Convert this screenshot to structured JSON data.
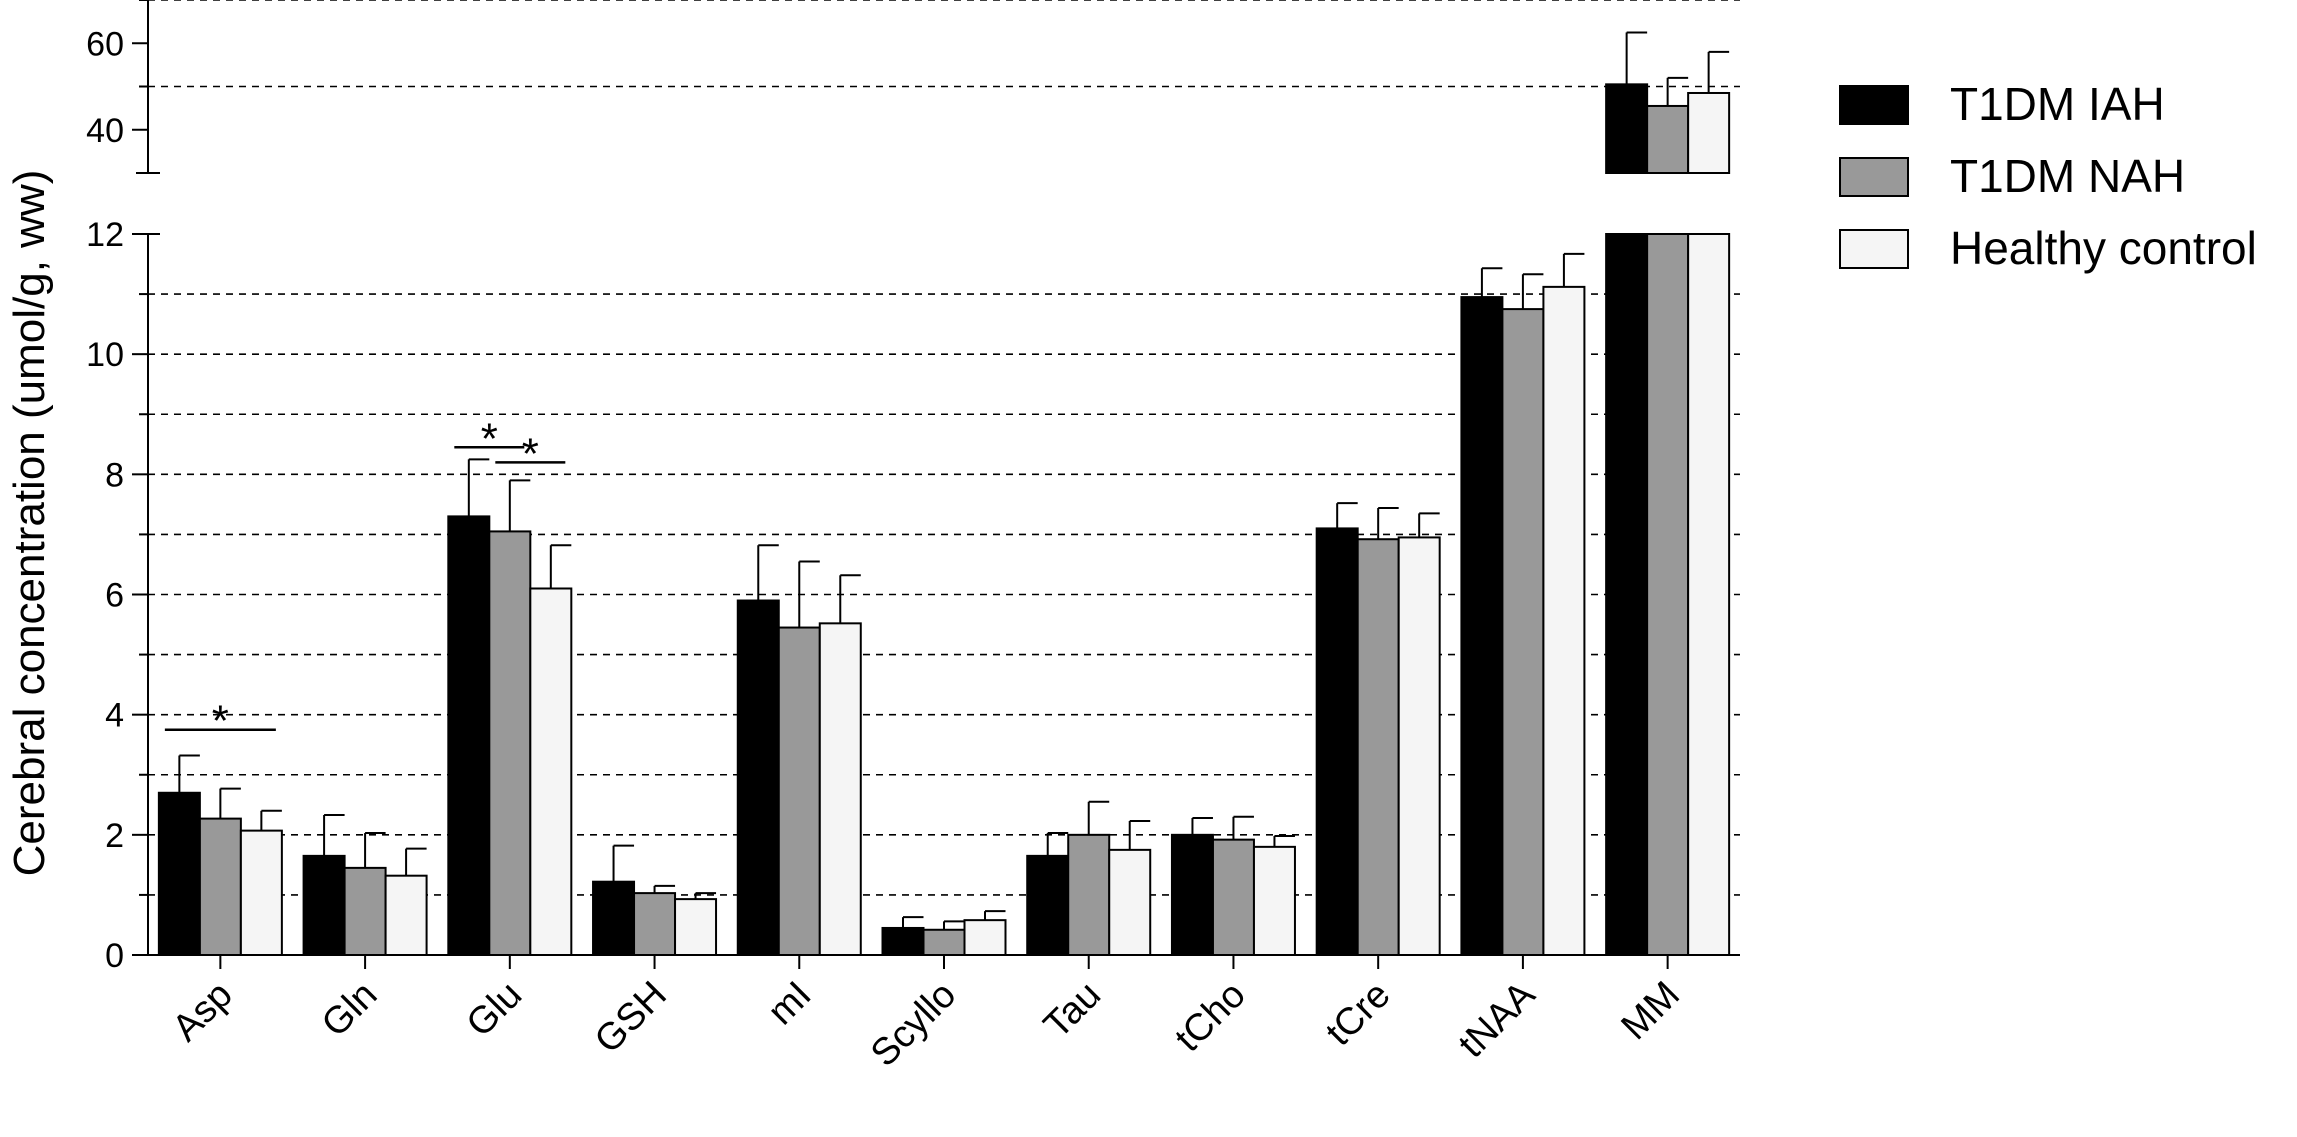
{
  "chart_data": {
    "type": "bar",
    "ylabel": "Cerebral concentration (umol/g, ww)",
    "categories": [
      "Asp",
      "Gln",
      "Glu",
      "GSH",
      "mI",
      "Scyllo",
      "Tau",
      "tCho",
      "tCre",
      "tNAA",
      "MM"
    ],
    "series": [
      {
        "name": "T1DM IAH",
        "color": "#000000",
        "values": [
          2.7,
          1.65,
          7.3,
          1.22,
          5.9,
          0.45,
          1.65,
          2.0,
          7.1,
          10.95,
          50.5
        ],
        "errors": [
          0.62,
          0.68,
          0.95,
          0.6,
          0.92,
          0.18,
          0.38,
          0.28,
          0.42,
          0.48,
          12.0
        ]
      },
      {
        "name": "T1DM NAH",
        "color": "#999999",
        "values": [
          2.27,
          1.45,
          7.05,
          1.03,
          5.45,
          0.42,
          2.0,
          1.92,
          6.92,
          10.75,
          45.5
        ],
        "errors": [
          0.5,
          0.58,
          0.85,
          0.12,
          1.1,
          0.14,
          0.55,
          0.38,
          0.52,
          0.58,
          6.5
        ]
      },
      {
        "name": "Healthy control",
        "color": "#f5f5f5",
        "values": [
          2.07,
          1.32,
          6.1,
          0.93,
          5.52,
          0.58,
          1.75,
          1.8,
          6.95,
          11.12,
          48.5
        ],
        "errors": [
          0.33,
          0.45,
          0.72,
          0.1,
          0.8,
          0.15,
          0.48,
          0.18,
          0.4,
          0.55,
          9.5
        ]
      }
    ],
    "y_axis_lower": {
      "range": [
        0,
        12
      ],
      "major_ticks": [
        "0",
        "2",
        "4",
        "6",
        "8",
        "10",
        "12"
      ],
      "gridlines": [
        1,
        2,
        3,
        4,
        5,
        6,
        7,
        8,
        9,
        10,
        11
      ]
    },
    "y_axis_upper": {
      "range": [
        30,
        70
      ],
      "major_ticks": [
        "40",
        "60"
      ],
      "gridlines": [
        50,
        70
      ]
    },
    "y_axis_break": [
      12,
      30
    ],
    "grid": "dashed horizontal",
    "legend_position": "right",
    "significance": [
      {
        "label": "*",
        "category": "Asp",
        "from_series": 0,
        "to_series": 2,
        "y": 3.75
      },
      {
        "label": "*",
        "category": "Glu",
        "from_series": 0,
        "to_series": 1,
        "y": 8.45
      },
      {
        "label": "*",
        "category": "Glu",
        "from_series": 1,
        "to_series": 2,
        "y": 8.2
      }
    ]
  }
}
